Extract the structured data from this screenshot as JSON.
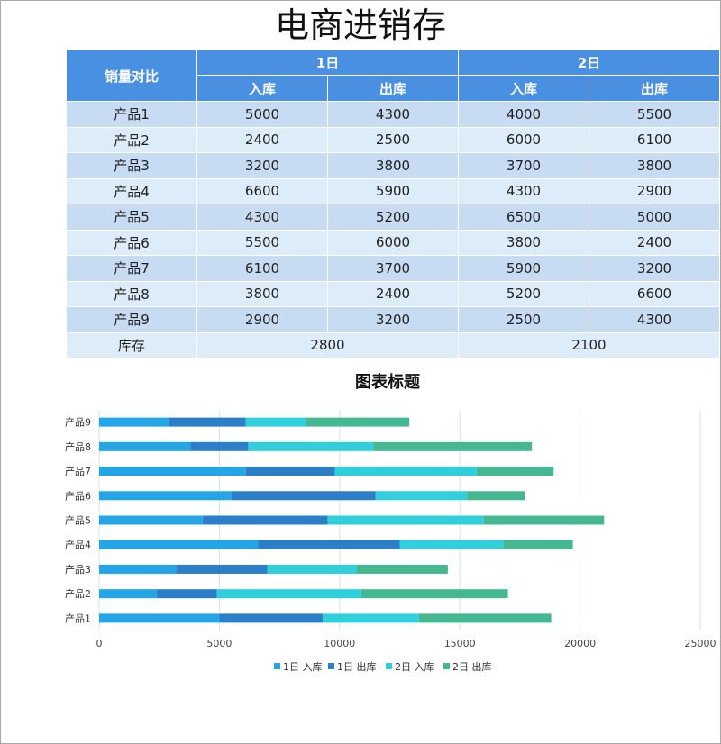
{
  "title": "电商进销存",
  "table": {
    "corner": "销量对比",
    "days": [
      "1日",
      "2日"
    ],
    "subheaders": [
      "入库",
      "出库",
      "入库",
      "出库"
    ],
    "rows": [
      {
        "name": "产品1",
        "values": [
          "5000",
          "4300",
          "4000",
          "5500"
        ]
      },
      {
        "name": "产品2",
        "values": [
          "2400",
          "2500",
          "6000",
          "6100"
        ]
      },
      {
        "name": "产品3",
        "values": [
          "3200",
          "3800",
          "3700",
          "3800"
        ]
      },
      {
        "name": "产品4",
        "values": [
          "6600",
          "5900",
          "4300",
          "2900"
        ]
      },
      {
        "name": "产品5",
        "values": [
          "4300",
          "5200",
          "6500",
          "5000"
        ]
      },
      {
        "name": "产品6",
        "values": [
          "5500",
          "6000",
          "3800",
          "2400"
        ]
      },
      {
        "name": "产品7",
        "values": [
          "6100",
          "3700",
          "5900",
          "3200"
        ]
      },
      {
        "name": "产品8",
        "values": [
          "3800",
          "2400",
          "5200",
          "6600"
        ]
      },
      {
        "name": "产品9",
        "values": [
          "2900",
          "3200",
          "2500",
          "4300"
        ]
      }
    ],
    "stock": {
      "label": "库存",
      "values": [
        "2800",
        "2100"
      ]
    }
  },
  "chart_data": {
    "type": "bar",
    "orientation": "horizontal",
    "stacked": true,
    "title": "图表标题",
    "categories": [
      "产品1",
      "产品2",
      "产品3",
      "产品4",
      "产品5",
      "产品6",
      "产品7",
      "产品8",
      "产品9"
    ],
    "series": [
      {
        "name": "1日 入库",
        "color": "#24a5e6",
        "values": [
          5000,
          2400,
          3200,
          6600,
          4300,
          5500,
          6100,
          3800,
          2900
        ]
      },
      {
        "name": "1日 出库",
        "color": "#2b7fc9",
        "values": [
          4300,
          2500,
          3800,
          5900,
          5200,
          6000,
          3700,
          2400,
          3200
        ]
      },
      {
        "name": "2日 入库",
        "color": "#2fd0dc",
        "values": [
          4000,
          6000,
          3700,
          4300,
          6500,
          3800,
          5900,
          5200,
          2500
        ]
      },
      {
        "name": "2日 出库",
        "color": "#44b991",
        "values": [
          5500,
          6100,
          3800,
          2900,
          5000,
          2400,
          3200,
          6600,
          4300
        ]
      }
    ],
    "xlim": [
      0,
      25000
    ],
    "xticks": [
      0,
      5000,
      10000,
      15000,
      20000,
      25000
    ],
    "grid": true,
    "legend": "bottom"
  }
}
